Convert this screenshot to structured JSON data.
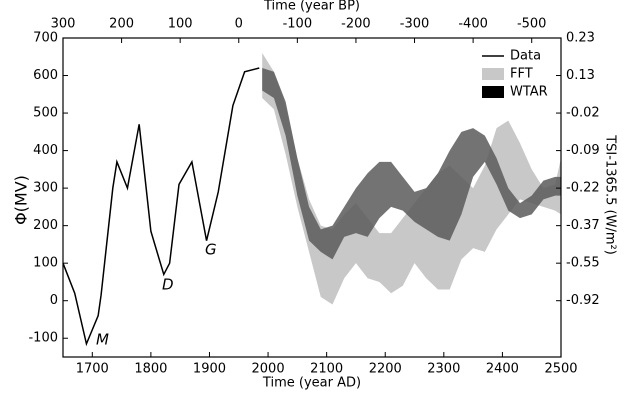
{
  "chart_data": {
    "type": "line",
    "xlabel": "Time (year AD)",
    "ylabel": "Φ(MV)",
    "x2label": "Time (year BP)",
    "y2label": "TSI-1365.5 (W/m²)",
    "xlim": [
      1650,
      2500
    ],
    "xticks": [
      1700,
      1800,
      1900,
      2000,
      2100,
      2200,
      2300,
      2400,
      2500
    ],
    "ylim": [
      -150,
      700
    ],
    "yticks": [
      -100,
      0,
      100,
      200,
      300,
      400,
      500,
      600,
      700
    ],
    "x2ticks": [
      300,
      200,
      100,
      0,
      -100,
      -200,
      -300,
      -400,
      -500
    ],
    "y2ticks": [
      0.23,
      0.13,
      -0.02,
      -0.09,
      -0.22,
      -0.37,
      -0.55,
      -0.92
    ],
    "legend": "upper right",
    "annotations": [
      "M",
      "D",
      "G"
    ],
    "series": [
      {
        "name": "Data",
        "color": "#000000",
        "x": [
          1650,
          1670,
          1690,
          1710,
          1715,
          1735,
          1742,
          1760,
          1780,
          1800,
          1822,
          1832,
          1848,
          1870,
          1895,
          1915,
          1940,
          1960,
          1985
        ],
        "values": [
          100,
          20,
          -115,
          -40,
          15,
          300,
          370,
          300,
          470,
          185,
          70,
          100,
          310,
          370,
          160,
          290,
          520,
          610,
          620
        ]
      },
      {
        "name": "FFT",
        "color": "#c8c8c8",
        "x": [
          1990,
          2010,
          2030,
          2050,
          2070,
          2090,
          2110,
          2130,
          2150,
          2170,
          2190,
          2210,
          2230,
          2250,
          2270,
          2290,
          2310,
          2330,
          2350,
          2370,
          2390,
          2410,
          2430,
          2450,
          2470,
          2490,
          2500
        ],
        "upper": [
          660,
          610,
          520,
          380,
          270,
          200,
          190,
          230,
          260,
          220,
          180,
          180,
          220,
          260,
          300,
          340,
          360,
          330,
          300,
          360,
          460,
          480,
          420,
          350,
          300,
          310,
          380
        ],
        "lower": [
          540,
          510,
          390,
          250,
          130,
          10,
          -10,
          60,
          100,
          60,
          50,
          20,
          40,
          100,
          60,
          30,
          30,
          110,
          140,
          130,
          190,
          230,
          270,
          260,
          250,
          240,
          230
        ]
      },
      {
        "name": "WTAR",
        "color": "#5a5a5a",
        "x": [
          1990,
          2010,
          2030,
          2050,
          2070,
          2090,
          2110,
          2130,
          2150,
          2170,
          2190,
          2210,
          2230,
          2250,
          2270,
          2290,
          2310,
          2330,
          2350,
          2370,
          2390,
          2410,
          2430,
          2450,
          2470,
          2490,
          2500
        ],
        "upper": [
          620,
          610,
          530,
          380,
          250,
          190,
          200,
          250,
          300,
          340,
          370,
          370,
          330,
          290,
          300,
          340,
          400,
          450,
          460,
          440,
          380,
          300,
          260,
          280,
          320,
          330,
          330
        ],
        "lower": [
          560,
          540,
          440,
          280,
          160,
          130,
          110,
          170,
          180,
          170,
          220,
          250,
          240,
          210,
          190,
          170,
          160,
          230,
          330,
          370,
          310,
          240,
          220,
          230,
          270,
          280,
          280
        ]
      }
    ]
  }
}
